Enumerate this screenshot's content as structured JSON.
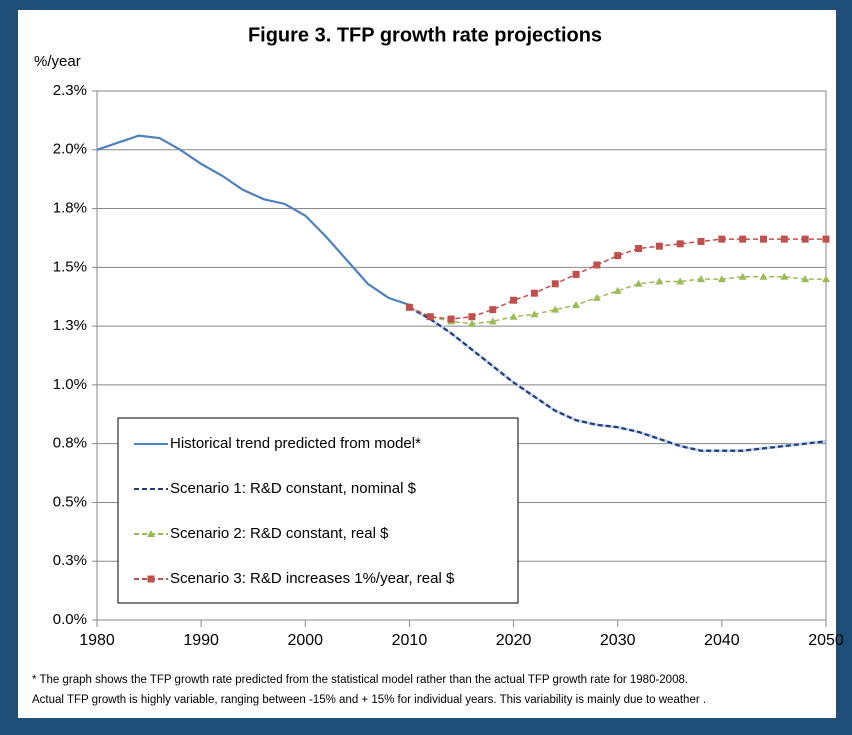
{
  "chart_data": {
    "type": "line",
    "title": "Figure 3. TFP growth rate projections",
    "y_label": "%/year",
    "x": [
      1980,
      1982,
      1984,
      1986,
      1988,
      1990,
      1992,
      1994,
      1996,
      1998,
      2000,
      2002,
      2004,
      2006,
      2008,
      2010,
      2012,
      2014,
      2016,
      2018,
      2020,
      2022,
      2024,
      2026,
      2028,
      2030,
      2032,
      2034,
      2036,
      2038,
      2040,
      2042,
      2044,
      2046,
      2048,
      2050
    ],
    "xlim": [
      1980,
      2050
    ],
    "xticks": [
      1980,
      1990,
      2000,
      2010,
      2020,
      2030,
      2040,
      2050
    ],
    "ylim": [
      0,
      2.25
    ],
    "yticks": [
      {
        "value": 0,
        "label": "0.0%"
      },
      {
        "value": 0.25,
        "label": "0.3%"
      },
      {
        "value": 0.5,
        "label": "0.5%"
      },
      {
        "value": 0.75,
        "label": "0.8%"
      },
      {
        "value": 1.0,
        "label": "1.0%"
      },
      {
        "value": 1.25,
        "label": "1.3%"
      },
      {
        "value": 1.5,
        "label": "1.5%"
      },
      {
        "value": 1.75,
        "label": "1.8%"
      },
      {
        "value": 2.0,
        "label": "2.0%"
      },
      {
        "value": 2.25,
        "label": "2.3%"
      }
    ],
    "grid": true,
    "legend": "lower left",
    "series": [
      {
        "name": "Historical trend predicted from model*",
        "color": "#4f81bd",
        "dashed": false,
        "marker": "none",
        "values": [
          2.0,
          2.03,
          2.06,
          2.05,
          2.0,
          1.94,
          1.89,
          1.83,
          1.79,
          1.77,
          1.72,
          1.63,
          1.53,
          1.43,
          1.37,
          1.34,
          null,
          null,
          null,
          null,
          null,
          null,
          null,
          null,
          null,
          null,
          null,
          null,
          null,
          null,
          null,
          null,
          null,
          null,
          null,
          null
        ]
      },
      {
        "name": "Scenario 1: R&D constant, nominal $",
        "color": "#1f3e7a",
        "dashed": true,
        "marker": "none",
        "values": [
          null,
          null,
          null,
          null,
          null,
          null,
          null,
          null,
          null,
          null,
          null,
          null,
          null,
          null,
          null,
          1.33,
          1.28,
          1.22,
          1.15,
          1.08,
          1.01,
          0.95,
          0.89,
          0.85,
          0.83,
          0.82,
          0.8,
          0.77,
          0.74,
          0.72,
          0.72,
          0.72,
          0.73,
          0.74,
          0.75,
          0.76
        ]
      },
      {
        "name": "Scenario 2: R&D constant, real $",
        "color": "#9bbb59",
        "dashed": true,
        "marker": "triangle",
        "values": [
          null,
          null,
          null,
          null,
          null,
          null,
          null,
          null,
          null,
          null,
          null,
          null,
          null,
          null,
          null,
          1.33,
          1.29,
          1.27,
          1.26,
          1.27,
          1.29,
          1.3,
          1.32,
          1.34,
          1.37,
          1.4,
          1.43,
          1.44,
          1.44,
          1.45,
          1.45,
          1.46,
          1.46,
          1.46,
          1.45,
          1.45
        ]
      },
      {
        "name": "Scenario 3: R&D increases 1%/year, real $",
        "color": "#c0504d",
        "dashed": true,
        "marker": "square",
        "values": [
          null,
          null,
          null,
          null,
          null,
          null,
          null,
          null,
          null,
          null,
          null,
          null,
          null,
          null,
          null,
          1.33,
          1.29,
          1.28,
          1.29,
          1.32,
          1.36,
          1.39,
          1.43,
          1.47,
          1.51,
          1.55,
          1.58,
          1.59,
          1.6,
          1.61,
          1.62,
          1.62,
          1.62,
          1.62,
          1.62,
          1.62
        ]
      }
    ],
    "footnote": [
      "* The graph shows the TFP growth  rate predicted from the statistical model rather than the actual TFP growth rate for 1980-2008.",
      "Actual TFP growth is highly variable, ranging between -15% and + 15% for individual years. This variability is mainly due to weather ."
    ]
  }
}
